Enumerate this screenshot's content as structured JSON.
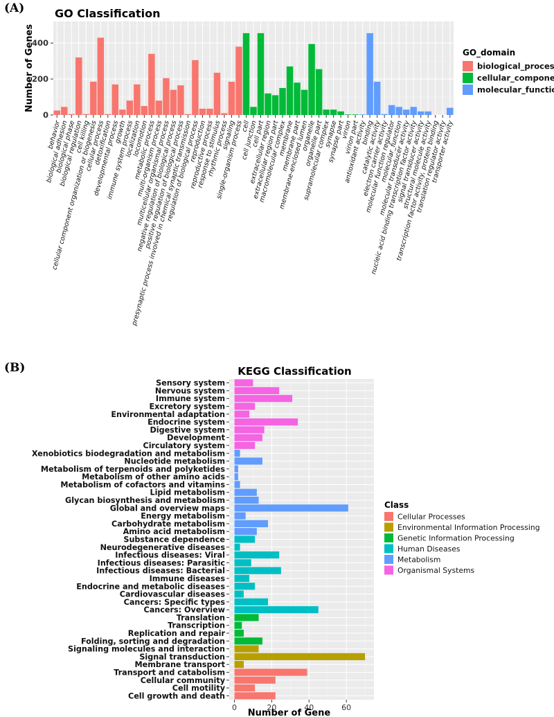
{
  "panels": {
    "a_label": "(A)",
    "b_label": "(B)"
  },
  "chart_data": [
    {
      "type": "bar",
      "title": "GO Classification",
      "xlabel": "",
      "ylabel": "Number of Genes",
      "ylim": [
        0,
        520
      ],
      "yticks": [
        0,
        200,
        400
      ],
      "grid": true,
      "legend_title": "GO_domain",
      "legend_position": "right",
      "domains": [
        {
          "name": "biological_process",
          "color": "#F8766D"
        },
        {
          "name": "cellular_component",
          "color": "#00BA38"
        },
        {
          "name": "molecular_function",
          "color": "#619CFF"
        }
      ],
      "categories": [
        "behavior",
        "biological adhesion",
        "biological phase",
        "biological regulation",
        "cell killing",
        "cellular component organization or biogenesis",
        "cellular process",
        "detoxification",
        "developmental process",
        "growth",
        "immune system process",
        "localization",
        "locomotion",
        "metabolic process",
        "multi-organism process",
        "multicellular organismal process",
        "negative regulation of biological process",
        "positive regulation of biological process",
        "presynaptic process involved in chemical synaptic transmission",
        "regulation of biological process",
        "reproduction",
        "reproductive process",
        "response to stimulus",
        "rhythmic process",
        "signaling",
        "single-organism process",
        "cell",
        "cell junction",
        "cell part",
        "extracellular region",
        "extracellular region part",
        "macromolecular complex",
        "membrane",
        "membrane part",
        "membrane-enclosed lumen",
        "organelle",
        "organelle part",
        "supramolecular complex",
        "synapse",
        "synapse part",
        "virion",
        "virion part",
        "antioxidant activity",
        "binding",
        "catalytic activity",
        "electron carrier activity",
        "molecular function regulator",
        "molecular_function",
        "molecular transducer activity",
        "nucleic acid binding transcription factor activity",
        "signal transducer activity",
        "structural molecule activity",
        "transcription factor activity, protein binding",
        "translation regulator activity",
        "transporter activity"
      ],
      "values": [
        25,
        45,
        5,
        320,
        5,
        185,
        430,
        5,
        170,
        30,
        80,
        170,
        50,
        340,
        80,
        205,
        140,
        165,
        5,
        305,
        35,
        35,
        235,
        10,
        185,
        380,
        455,
        45,
        455,
        120,
        110,
        150,
        270,
        180,
        140,
        395,
        255,
        30,
        30,
        20,
        3,
        3,
        3,
        455,
        185,
        5,
        55,
        45,
        30,
        45,
        20,
        20,
        0,
        0,
        40
      ],
      "domain_index": [
        0,
        0,
        0,
        0,
        0,
        0,
        0,
        0,
        0,
        0,
        0,
        0,
        0,
        0,
        0,
        0,
        0,
        0,
        0,
        0,
        0,
        0,
        0,
        0,
        0,
        0,
        1,
        1,
        1,
        1,
        1,
        1,
        1,
        1,
        1,
        1,
        1,
        1,
        1,
        1,
        1,
        1,
        2,
        2,
        2,
        2,
        2,
        2,
        2,
        2,
        2,
        2,
        2,
        2,
        2
      ]
    },
    {
      "type": "bar",
      "orientation": "horizontal",
      "title": "KEGG Classification",
      "xlabel": "Number of Gene",
      "ylabel": "",
      "xlim": [
        0,
        72
      ],
      "xticks": [
        0,
        20,
        40,
        60
      ],
      "grid": true,
      "legend_title": "Class",
      "legend_position": "right",
      "classes": [
        {
          "name": "Cellular Processes",
          "color": "#F8766D"
        },
        {
          "name": "Environmental Information Processing",
          "color": "#B79F00"
        },
        {
          "name": "Genetic Information Processing",
          "color": "#00BA38"
        },
        {
          "name": "Human Diseases",
          "color": "#00BFC4"
        },
        {
          "name": "Metabolism",
          "color": "#619CFF"
        },
        {
          "name": "Organismal Systems",
          "color": "#F564E3"
        }
      ],
      "categories": [
        "Sensory system",
        "Nervous system",
        "Immune system",
        "Excretory system",
        "Environmental adaptation",
        "Endocrine system",
        "Digestive system",
        "Development",
        "Circulatory system",
        "Xenobiotics biodegradation and metabolism",
        "Nucleotide metabolism",
        "Metabolism of terpenoids and polyketides",
        "Metabolism of other amino acids",
        "Metabolism of cofactors and vitamins",
        "Lipid metabolism",
        "Glycan biosynthesis and metabolism",
        "Global and overview maps",
        "Energy metabolism",
        "Carbohydrate metabolism",
        "Amino acid metabolism",
        "Substance dependence",
        "Neurodegenerative diseases",
        "Infectious diseases: Viral",
        "Infectious diseases: Parasitic",
        "Infectious diseases: Bacterial",
        "Immune diseases",
        "Endocrine and metabolic diseases",
        "Cardiovascular diseases",
        "Cancers: Specific types",
        "Cancers: Overview",
        "Translation",
        "Transcription",
        "Replication and repair",
        "Folding, sorting and degradation",
        "Signaling molecules and interaction",
        "Signal transduction",
        "Membrane transport",
        "Transport and catabolism",
        "Cellular community",
        "Cell motility",
        "Cell growth and death"
      ],
      "values": [
        10,
        24,
        31,
        11,
        8,
        34,
        16,
        15,
        11,
        3,
        15,
        2,
        2,
        3,
        12,
        13,
        61,
        6,
        18,
        12,
        11,
        3,
        24,
        9,
        25,
        8,
        11,
        5,
        18,
        45,
        13,
        4,
        5,
        15,
        13,
        70,
        5,
        39,
        22,
        11,
        22
      ],
      "class_index": [
        5,
        5,
        5,
        5,
        5,
        5,
        5,
        5,
        5,
        4,
        4,
        4,
        4,
        4,
        4,
        4,
        4,
        4,
        4,
        4,
        3,
        3,
        3,
        3,
        3,
        3,
        3,
        3,
        3,
        3,
        2,
        2,
        2,
        2,
        1,
        1,
        1,
        0,
        0,
        0,
        0
      ]
    }
  ]
}
